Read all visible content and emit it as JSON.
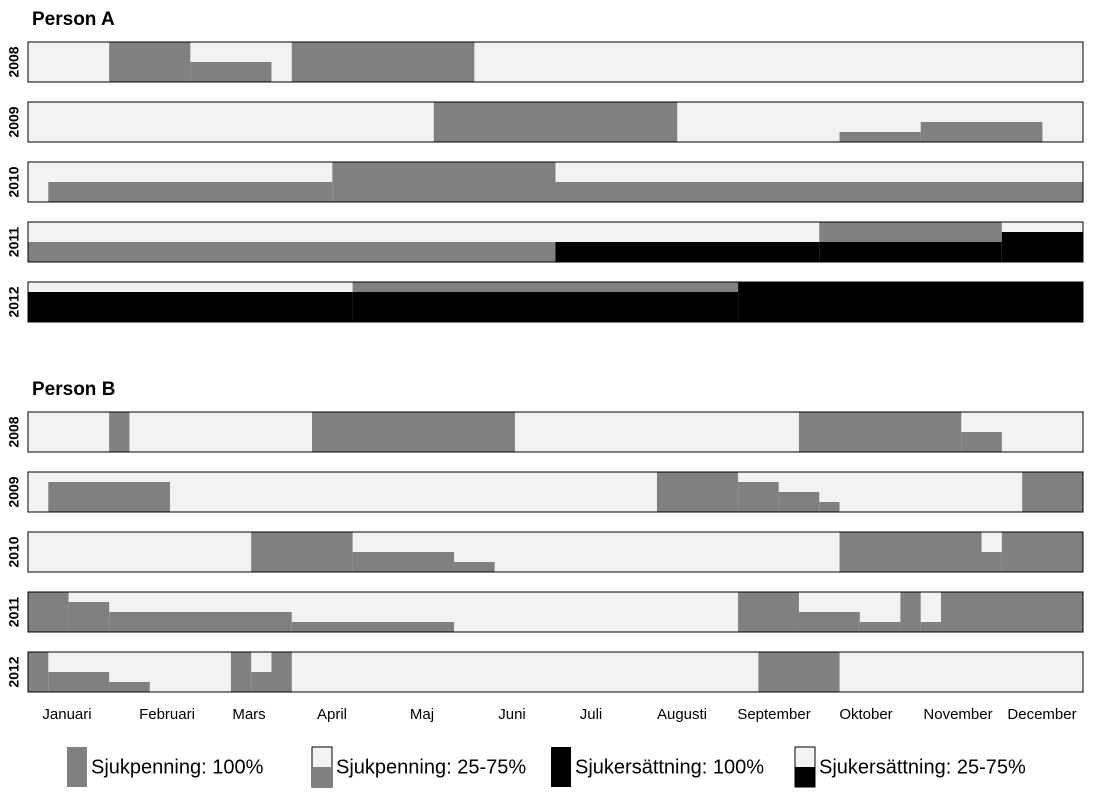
{
  "chart_data": {
    "type": "timeline",
    "xlim": [
      0,
      52
    ],
    "background": "#f2f2f2",
    "sp_color": "#808080",
    "se_color": "#000000",
    "months": [
      "Januari",
      "Februari",
      "Mars",
      "April",
      "Maj",
      "Juni",
      "Juli",
      "Augusti",
      "September",
      "Oktober",
      "November",
      "December"
    ],
    "legend": [
      "Sjukpenning: 100%",
      "Sjukpenning: 25-75%",
      "Sjukersättning: 100%",
      "Sjukersättning: 25-75%"
    ],
    "panels": [
      {
        "title": "Person A",
        "rows": [
          {
            "year": "2008",
            "segments": [
              {
                "x": [
                  4,
                  8
                ],
                "sp": 100
              },
              {
                "x": [
                  8,
                  12
                ],
                "sp": 50
              },
              {
                "x": [
                  13,
                  22
                ],
                "sp": 100
              }
            ]
          },
          {
            "year": "2009",
            "segments": [
              {
                "x": [
                  20,
                  32
                ],
                "sp": 100
              },
              {
                "x": [
                  40,
                  44
                ],
                "sp": 25
              },
              {
                "x": [
                  44,
                  50
                ],
                "sp": 50
              }
            ]
          },
          {
            "year": "2010",
            "segments": [
              {
                "x": [
                  1,
                  15
                ],
                "sp": 50
              },
              {
                "x": [
                  15,
                  26
                ],
                "sp": 100
              },
              {
                "x": [
                  26,
                  52
                ],
                "sp": 50
              }
            ]
          },
          {
            "year": "2011",
            "segments": [
              {
                "x": [
                  0,
                  26
                ],
                "sp": 50
              },
              {
                "x": [
                  26,
                  39
                ],
                "se": 50
              },
              {
                "x": [
                  39,
                  48
                ],
                "se": 50,
                "sp": 50
              },
              {
                "x": [
                  48,
                  52
                ],
                "se": 75
              }
            ]
          },
          {
            "year": "2012",
            "segments": [
              {
                "x": [
                  0,
                  16
                ],
                "se": 75
              },
              {
                "x": [
                  16,
                  35
                ],
                "se": 75,
                "sp": 25
              },
              {
                "x": [
                  35,
                  52
                ],
                "se": 100
              }
            ]
          }
        ]
      },
      {
        "title": "Person B",
        "rows": [
          {
            "year": "2008",
            "segments": [
              {
                "x": [
                  4,
                  5
                ],
                "sp": 100
              },
              {
                "x": [
                  14,
                  24
                ],
                "sp": 100
              },
              {
                "x": [
                  38,
                  46
                ],
                "sp": 100
              },
              {
                "x": [
                  46,
                  48
                ],
                "sp": 50
              }
            ]
          },
          {
            "year": "2009",
            "segments": [
              {
                "x": [
                  1,
                  7
                ],
                "sp": 75
              },
              {
                "x": [
                  31,
                  35
                ],
                "sp": 100
              },
              {
                "x": [
                  35,
                  37
                ],
                "sp": 75
              },
              {
                "x": [
                  37,
                  39
                ],
                "sp": 50
              },
              {
                "x": [
                  39,
                  40
                ],
                "sp": 25
              },
              {
                "x": [
                  49,
                  52
                ],
                "sp": 100
              }
            ]
          },
          {
            "year": "2010",
            "segments": [
              {
                "x": [
                  11,
                  16
                ],
                "sp": 100
              },
              {
                "x": [
                  16,
                  21
                ],
                "sp": 50
              },
              {
                "x": [
                  21,
                  23
                ],
                "sp": 25
              },
              {
                "x": [
                  40,
                  47
                ],
                "sp": 100
              },
              {
                "x": [
                  47,
                  48
                ],
                "sp": 50
              },
              {
                "x": [
                  48,
                  52
                ],
                "sp": 100
              }
            ]
          },
          {
            "year": "2011",
            "segments": [
              {
                "x": [
                  0,
                  2
                ],
                "sp": 100
              },
              {
                "x": [
                  2,
                  4
                ],
                "sp": 75
              },
              {
                "x": [
                  4,
                  13
                ],
                "sp": 50
              },
              {
                "x": [
                  13,
                  21
                ],
                "sp": 25
              },
              {
                "x": [
                  35,
                  38
                ],
                "sp": 100
              },
              {
                "x": [
                  38,
                  41
                ],
                "sp": 50
              },
              {
                "x": [
                  41,
                  43
                ],
                "sp": 25
              },
              {
                "x": [
                  43,
                  44
                ],
                "sp": 100
              },
              {
                "x": [
                  44,
                  45
                ],
                "sp": 25
              },
              {
                "x": [
                  45,
                  52
                ],
                "sp": 100
              }
            ]
          },
          {
            "year": "2012",
            "segments": [
              {
                "x": [
                  0,
                  1
                ],
                "sp": 100
              },
              {
                "x": [
                  1,
                  4
                ],
                "sp": 50
              },
              {
                "x": [
                  4,
                  6
                ],
                "sp": 25
              },
              {
                "x": [
                  10,
                  11
                ],
                "sp": 100
              },
              {
                "x": [
                  11,
                  12
                ],
                "sp": 50
              },
              {
                "x": [
                  12,
                  13
                ],
                "sp": 100
              },
              {
                "x": [
                  36,
                  40
                ],
                "sp": 100
              }
            ]
          }
        ]
      }
    ]
  }
}
